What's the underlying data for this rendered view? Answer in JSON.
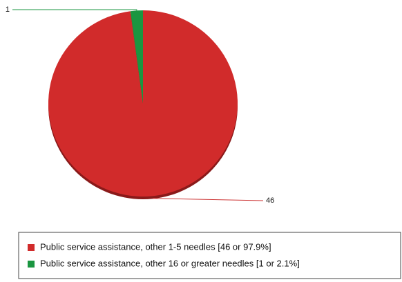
{
  "chart_data": {
    "type": "pie",
    "categories": [
      "Public service assistance, other 1-5 needles [46 or 97.9%]",
      "Public service assistance, other 16 or greater needles [1 or 2.1%]"
    ],
    "values": [
      46,
      1
    ],
    "colors": [
      "#d12b2b",
      "#1a9640"
    ]
  }
}
